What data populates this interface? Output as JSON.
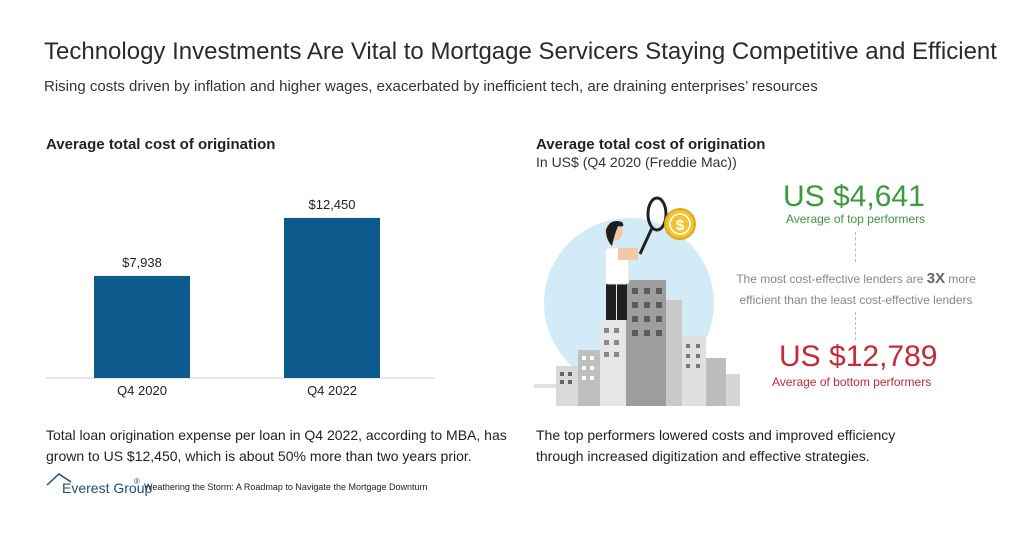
{
  "title": "Technology Investments Are Vital to Mortgage Servicers Staying Competitive and Efficient",
  "subtitle": "Rising costs driven by inflation and higher wages, exacerbated by inefficient tech, are draining enterprises’ resources",
  "left_panel": {
    "heading": "Average total cost of origination",
    "note": "Total loan origination expense per loan in Q4 2022, according to MBA, has grown to US $12,450, which is about 50% more than two years prior."
  },
  "chart_data": {
    "type": "bar",
    "categories": [
      "Q4 2020",
      "Q4 2022"
    ],
    "values": [
      7938,
      12450
    ],
    "value_labels": [
      "$7,938",
      "$12,450"
    ],
    "title": "Average total cost of origination",
    "xlabel": "",
    "ylabel": "",
    "ylim": [
      0,
      14000
    ],
    "grid": false,
    "bar_color": "#0d5a8c"
  },
  "right_panel": {
    "heading": "Average total cost of origination",
    "subheading": "In US$ (Q4 2020 (Freddie Mac))",
    "top_value": "US $4,641",
    "top_label": "Average of top performers",
    "compare_pre": "The most cost-effective lenders are ",
    "compare_mult": "3X",
    "compare_post": " more efficient than the least cost-effective lenders",
    "bottom_value": "US $12,789",
    "bottom_label": "Average of bottom performers",
    "note": "The top performers lowered costs and improved efficiency through increased digitization and effective strategies."
  },
  "footer": {
    "logo": "Everest Group",
    "logo_mark": "®",
    "source": "Weathering the Storm: A Roadmap to Navigate the Mortgage Downturn"
  },
  "colors": {
    "green": "#3a9b3a",
    "red": "#c62a36",
    "bar": "#0d5a8c",
    "circle": "#d3ebf7"
  },
  "icons": {
    "illustration": "woman-with-magnifying-glass-on-city-icon",
    "logo": "everest-group-mountain-icon"
  }
}
